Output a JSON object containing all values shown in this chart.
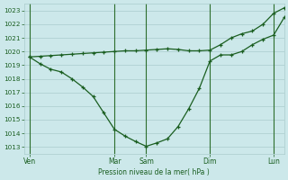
{
  "xlabel": "Pression niveau de la mer( hPa )",
  "bg_color": "#cce8ea",
  "grid_color": "#aacccc",
  "line_color": "#1a5e20",
  "dark_line_color": "#2d6e2d",
  "ylim": [
    1012.5,
    1023.5
  ],
  "yticks": [
    1013,
    1014,
    1015,
    1016,
    1017,
    1018,
    1019,
    1020,
    1021,
    1022,
    1023
  ],
  "xtick_labels": [
    "Ven",
    "Mar",
    "Sam",
    "Dim",
    "Lun"
  ],
  "xtick_pos": [
    0,
    8,
    11,
    17,
    23
  ],
  "vlines_x": [
    0,
    8,
    11,
    17,
    23
  ],
  "xlim": [
    -0.5,
    24
  ],
  "smooth_x": [
    0,
    1,
    2,
    3,
    4,
    5,
    6,
    7,
    8,
    9,
    10,
    11,
    12,
    13,
    14,
    15,
    16,
    17,
    18,
    19,
    20,
    21,
    22,
    23,
    24
  ],
  "smooth_y": [
    1019.6,
    1019.65,
    1019.7,
    1019.75,
    1019.8,
    1019.85,
    1019.9,
    1019.95,
    1020.0,
    1020.05,
    1020.05,
    1020.1,
    1020.15,
    1020.2,
    1020.15,
    1020.05,
    1020.05,
    1020.1,
    1020.5,
    1021.0,
    1021.3,
    1021.5,
    1022.0,
    1022.8,
    1023.2
  ],
  "detail_x": [
    0,
    1,
    2,
    3,
    4,
    5,
    6,
    7,
    8,
    9,
    10,
    11,
    12,
    13,
    14,
    15,
    16,
    17,
    18,
    19,
    20,
    21,
    22,
    23,
    24
  ],
  "detail_y": [
    1019.6,
    1019.1,
    1018.7,
    1018.5,
    1018.0,
    1017.4,
    1016.7,
    1015.5,
    1014.3,
    1013.8,
    1013.4,
    1013.05,
    1013.3,
    1013.6,
    1014.5,
    1015.8,
    1017.3,
    1019.3,
    1019.75,
    1019.75,
    1020.0,
    1020.5,
    1020.9,
    1021.2,
    1022.5
  ],
  "marker": "+",
  "marker_size": 3.5,
  "linewidth": 0.9
}
